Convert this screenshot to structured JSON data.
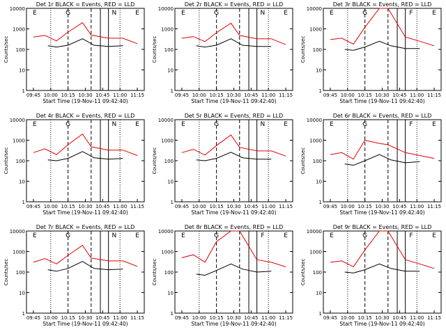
{
  "figure": {
    "x_label": "Start Time (19-Nov-11 09:42:40)",
    "y_label": "Counts/sec",
    "x_ticks": [
      "09:45",
      "10:00",
      "10:15",
      "10:30",
      "10:45",
      "11:00",
      "11:15"
    ],
    "y_ticks": [
      "1",
      "10",
      "100",
      "1000",
      "10000"
    ],
    "colors": {
      "events": "#000000",
      "lld": "#e00000",
      "axes": "#000000"
    }
  },
  "chart_data": [
    {
      "type": "line",
      "title": "Det 1r BLACK = Events, RED = LLD",
      "xlabel": "Start Time (19-Nov-11 09:42:40)",
      "ylabel": "Counts/sec",
      "x_range_min": [
        0,
        34
      ],
      "y_log_range": [
        1,
        10000
      ],
      "markers": [
        {
          "label": "E",
          "x": 0.5
        },
        {
          "label": "G",
          "x": 12
        },
        {
          "label": "N",
          "x": 28
        },
        {
          "label": "E",
          "x": 36
        }
      ],
      "series": [
        {
          "name": "Events",
          "points": [
            [
              5,
              150
            ],
            [
              8,
              130
            ],
            [
              12,
              160
            ],
            [
              17,
              330
            ],
            [
              21,
              160
            ],
            [
              26,
              140
            ],
            [
              31,
              150
            ]
          ]
        },
        {
          "name": "LLD",
          "points": [
            [
              0,
              400
            ],
            [
              4,
              480
            ],
            [
              8,
              260
            ],
            [
              12,
              700
            ],
            [
              17,
              2000
            ],
            [
              20,
              500
            ],
            [
              26,
              350
            ],
            [
              31,
              350
            ],
            [
              36,
              190
            ]
          ]
        }
      ]
    },
    {
      "type": "line",
      "title": "Det 2r BLACK = Events, RED = LLD",
      "xlabel": "Start Time (19-Nov-11 09:42:40)",
      "ylabel": "Counts/sec",
      "x_range_min": [
        0,
        34
      ],
      "y_log_range": [
        1,
        10000
      ],
      "markers": [
        {
          "label": "E",
          "x": 0.5
        },
        {
          "label": "G",
          "x": 12
        },
        {
          "label": "N",
          "x": 28
        },
        {
          "label": "E",
          "x": 36
        }
      ],
      "series": [
        {
          "name": "Events",
          "points": [
            [
              5,
              150
            ],
            [
              8,
              130
            ],
            [
              12,
              160
            ],
            [
              17,
              330
            ],
            [
              21,
              160
            ],
            [
              26,
              140
            ],
            [
              31,
              140
            ]
          ]
        },
        {
          "name": "LLD",
          "points": [
            [
              0,
              350
            ],
            [
              4,
              420
            ],
            [
              8,
              240
            ],
            [
              12,
              650
            ],
            [
              17,
              1900
            ],
            [
              20,
              480
            ],
            [
              26,
              330
            ],
            [
              31,
              330
            ],
            [
              36,
              170
            ]
          ]
        }
      ]
    },
    {
      "type": "line",
      "title": "Det 3r BLACK = Events, RED = LLD",
      "xlabel": "Start Time (19-Nov-11 09:42:40)",
      "ylabel": "Counts/sec",
      "x_range_min": [
        0,
        34
      ],
      "y_log_range": [
        1,
        10000
      ],
      "markers": [
        {
          "label": "E",
          "x": 0.5
        },
        {
          "label": "G",
          "x": 12
        },
        {
          "label": "F",
          "x": 28
        },
        {
          "label": "E",
          "x": 36
        }
      ],
      "series": [
        {
          "name": "Events",
          "points": [
            [
              5,
              100
            ],
            [
              8,
              90
            ],
            [
              12,
              130
            ],
            [
              17,
              250
            ],
            [
              21,
              150
            ],
            [
              26,
              110
            ],
            [
              31,
              110
            ]
          ]
        },
        {
          "name": "LLD",
          "points": [
            [
              0,
              300
            ],
            [
              4,
              350
            ],
            [
              8,
              180
            ],
            [
              12,
              1200
            ],
            [
              17,
              10000
            ],
            [
              20,
              10000
            ],
            [
              26,
              400
            ],
            [
              31,
              250
            ],
            [
              36,
              150
            ]
          ]
        }
      ]
    },
    {
      "type": "line",
      "title": "Det 4r BLACK = Events, RED = LLD",
      "xlabel": "Start Time (19-Nov-11 09:42:40)",
      "ylabel": "Counts/sec",
      "x_range_min": [
        0,
        34
      ],
      "y_log_range": [
        1,
        10000
      ],
      "markers": [
        {
          "label": "E",
          "x": 0.5
        },
        {
          "label": "G",
          "x": 12
        },
        {
          "label": "N",
          "x": 28
        },
        {
          "label": "E",
          "x": 36
        }
      ],
      "series": [
        {
          "name": "Events",
          "points": [
            [
              5,
              110
            ],
            [
              8,
              100
            ],
            [
              12,
              130
            ],
            [
              17,
              280
            ],
            [
              21,
              140
            ],
            [
              26,
              120
            ],
            [
              31,
              130
            ]
          ]
        },
        {
          "name": "LLD",
          "points": [
            [
              0,
              250
            ],
            [
              4,
              380
            ],
            [
              8,
              200
            ],
            [
              12,
              600
            ],
            [
              17,
              2000
            ],
            [
              20,
              480
            ],
            [
              26,
              330
            ],
            [
              31,
              330
            ],
            [
              36,
              180
            ]
          ]
        }
      ]
    },
    {
      "type": "line",
      "title": "Det 5r BLACK = Events, RED = LLD",
      "xlabel": "Start Time (19-Nov-11 09:42:40)",
      "ylabel": "Counts/sec",
      "x_range_min": [
        0,
        34
      ],
      "y_log_range": [
        1,
        10000
      ],
      "markers": [
        {
          "label": "E",
          "x": 0.5
        },
        {
          "label": "G",
          "x": 12
        },
        {
          "label": "N",
          "x": 28
        },
        {
          "label": "E",
          "x": 36
        }
      ],
      "series": [
        {
          "name": "Events",
          "points": [
            [
              5,
              110
            ],
            [
              8,
              100
            ],
            [
              12,
              130
            ],
            [
              17,
              260
            ],
            [
              21,
              140
            ],
            [
              26,
              120
            ],
            [
              31,
              120
            ]
          ]
        },
        {
          "name": "LLD",
          "points": [
            [
              0,
              250
            ],
            [
              4,
              360
            ],
            [
              8,
              190
            ],
            [
              12,
              550
            ],
            [
              17,
              1800
            ],
            [
              20,
              450
            ],
            [
              26,
              300
            ],
            [
              31,
              300
            ],
            [
              36,
              170
            ]
          ]
        }
      ]
    },
    {
      "type": "line",
      "title": "Det 6r BLACK = Events, RED = LLD",
      "xlabel": "Start Time (19-Nov-11 09:42:40)",
      "ylabel": "Counts/sec",
      "x_range_min": [
        0,
        34
      ],
      "y_log_range": [
        1,
        10000
      ],
      "markers": [
        {
          "label": "E",
          "x": 0.5
        },
        {
          "label": "G",
          "x": 12
        },
        {
          "label": "F",
          "x": 28
        },
        {
          "label": "E",
          "x": 36
        }
      ],
      "series": [
        {
          "name": "Events",
          "points": [
            [
              5,
              70
            ],
            [
              8,
              60
            ],
            [
              12,
              100
            ],
            [
              17,
              200
            ],
            [
              21,
              110
            ],
            [
              26,
              80
            ],
            [
              31,
              90
            ]
          ]
        },
        {
          "name": "LLD",
          "points": [
            [
              0,
              200
            ],
            [
              4,
              250
            ],
            [
              8,
              120
            ],
            [
              12,
              1000
            ],
            [
              17,
              700
            ],
            [
              20,
              600
            ],
            [
              26,
              250
            ],
            [
              31,
              180
            ],
            [
              36,
              130
            ]
          ]
        }
      ]
    },
    {
      "type": "line",
      "title": "Det 7r BLACK = Events, RED = LLD",
      "xlabel": "Start Time (19-Nov-11 09:42:40)",
      "ylabel": "Counts/sec",
      "x_range_min": [
        0,
        34
      ],
      "y_log_range": [
        1,
        10000
      ],
      "markers": [
        {
          "label": "E",
          "x": 0.5
        },
        {
          "label": "G",
          "x": 12
        },
        {
          "label": "N",
          "x": 28
        },
        {
          "label": "E",
          "x": 36
        }
      ],
      "series": [
        {
          "name": "Events",
          "points": [
            [
              5,
              130
            ],
            [
              8,
              110
            ],
            [
              12,
              150
            ],
            [
              17,
              330
            ],
            [
              21,
              150
            ],
            [
              26,
              130
            ],
            [
              31,
              140
            ]
          ]
        },
        {
          "name": "LLD",
          "points": [
            [
              0,
              300
            ],
            [
              4,
              450
            ],
            [
              8,
              250
            ],
            [
              12,
              650
            ],
            [
              17,
              2000
            ],
            [
              20,
              480
            ],
            [
              26,
              350
            ],
            [
              31,
              350
            ],
            [
              36,
              190
            ]
          ]
        }
      ]
    },
    {
      "type": "line",
      "title": "Det 8r BLACK = Events, RED = LLD",
      "xlabel": "Start Time (19-Nov-11 09:42:40)",
      "ylabel": "Counts/sec",
      "x_range_min": [
        0,
        34
      ],
      "y_log_range": [
        1,
        10000
      ],
      "markers": [
        {
          "label": "E",
          "x": 0.5
        },
        {
          "label": "G",
          "x": 12
        },
        {
          "label": "F",
          "x": 28
        },
        {
          "label": "E",
          "x": 36
        }
      ],
      "series": [
        {
          "name": "Events",
          "points": [
            [
              5,
              80
            ],
            [
              8,
              70
            ],
            [
              12,
              120
            ],
            [
              17,
              250
            ],
            [
              21,
              140
            ],
            [
              26,
              100
            ],
            [
              31,
              110
            ]
          ]
        },
        {
          "name": "LLD",
          "points": [
            [
              0,
              500
            ],
            [
              4,
              700
            ],
            [
              8,
              300
            ],
            [
              12,
              3000
            ],
            [
              17,
              10000
            ],
            [
              20,
              10000
            ],
            [
              26,
              400
            ],
            [
              31,
              300
            ],
            [
              36,
              180
            ]
          ]
        }
      ]
    },
    {
      "type": "line",
      "title": "Det 9r BLACK = Events, RED = LLD",
      "xlabel": "Start Time (19-Nov-11 09:42:40)",
      "ylabel": "Counts/sec",
      "x_range_min": [
        0,
        34
      ],
      "y_log_range": [
        1,
        10000
      ],
      "markers": [
        {
          "label": "E",
          "x": 0.5
        },
        {
          "label": "G",
          "x": 12
        },
        {
          "label": "F",
          "x": 28
        },
        {
          "label": "E",
          "x": 36
        }
      ],
      "series": [
        {
          "name": "Events",
          "points": [
            [
              5,
              100
            ],
            [
              8,
              90
            ],
            [
              12,
              130
            ],
            [
              17,
              250
            ],
            [
              21,
              150
            ],
            [
              26,
              110
            ],
            [
              31,
              110
            ]
          ]
        },
        {
          "name": "LLD",
          "points": [
            [
              0,
              300
            ],
            [
              4,
              350
            ],
            [
              8,
              180
            ],
            [
              12,
              1200
            ],
            [
              17,
              10000
            ],
            [
              20,
              10000
            ],
            [
              26,
              400
            ],
            [
              31,
              250
            ],
            [
              36,
              150
            ]
          ]
        }
      ]
    }
  ]
}
